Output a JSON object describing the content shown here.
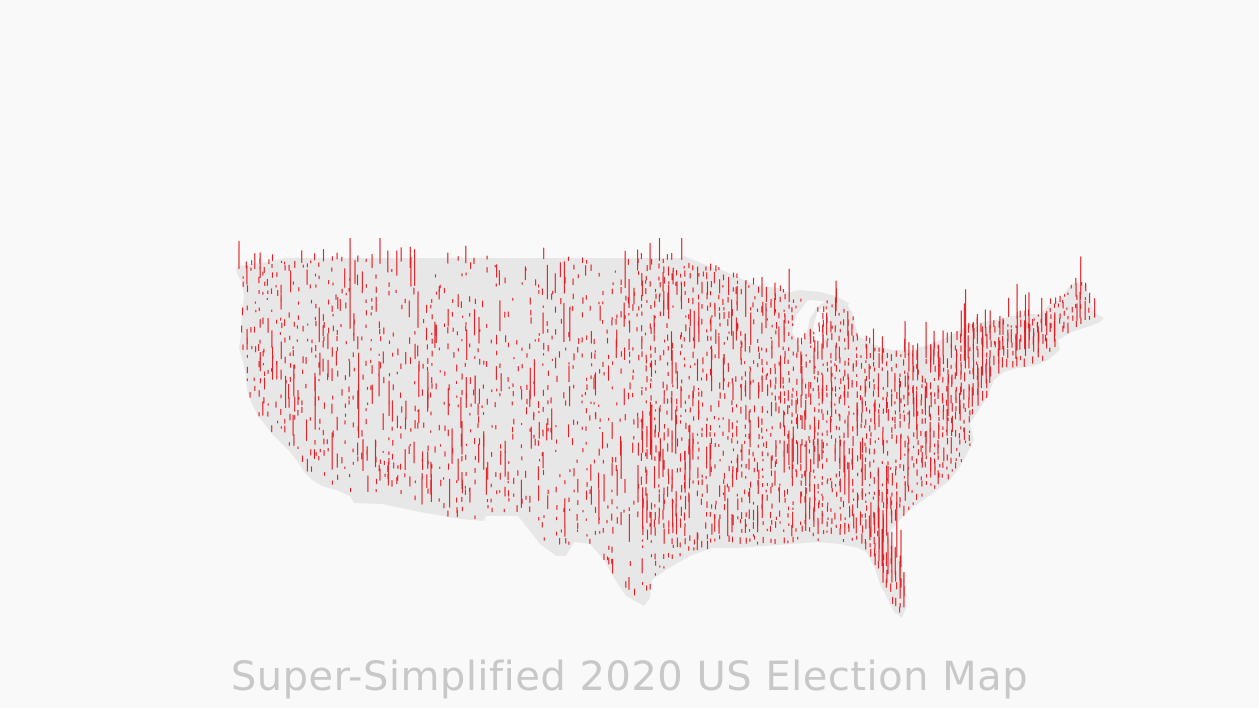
{
  "caption": "Super-Simplified 2020 US Election Map",
  "colors": {
    "background": "#f8f9f8",
    "land": "#e6e7e6",
    "spike": "#e31e24",
    "caption": "#c8c8c8"
  },
  "map": {
    "region": "contiguous-united-states",
    "mark_type": "vertical-spike",
    "mark_meaning": "one spike per county, height proportional to vote"
  }
}
